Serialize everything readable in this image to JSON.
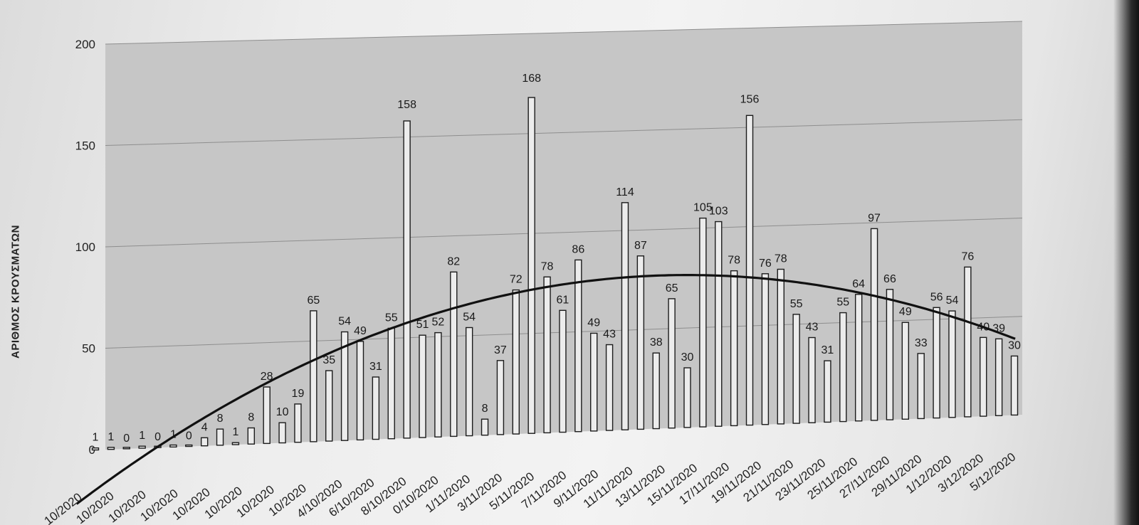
{
  "chart_data": {
    "type": "bar",
    "ylabel": "ΑΡΙΘΜΟΣ ΚΡΟΥΣΜΑΤΩΝ",
    "ylim": [
      0,
      200
    ],
    "yticks": [
      "0",
      "50",
      "100",
      "150",
      "200"
    ],
    "grid": true,
    "trendline": "polynomial",
    "values": [
      1,
      1,
      0,
      1,
      0,
      1,
      0,
      4,
      8,
      1,
      8,
      28,
      10,
      19,
      65,
      35,
      54,
      49,
      31,
      55,
      158,
      51,
      52,
      82,
      54,
      8,
      37,
      72,
      168,
      78,
      61,
      86,
      49,
      43,
      114,
      87,
      38,
      65,
      30,
      105,
      103,
      78,
      156,
      76,
      78,
      55,
      43,
      31,
      55,
      64,
      97,
      66,
      49,
      33,
      56,
      54,
      76,
      40,
      39,
      30
    ],
    "value_labels": [
      "1",
      "1",
      "0",
      "1",
      "0",
      "1",
      "0",
      "4",
      "8",
      "1",
      "8",
      "28",
      "10",
      "19",
      "65",
      "35",
      "54",
      "49",
      "31",
      "55",
      "158",
      "51",
      "52",
      "82",
      "54",
      "8",
      "37",
      "72",
      "168",
      "78",
      "61",
      "86",
      "49",
      "43",
      "114",
      "87",
      "38",
      "65",
      "30",
      "105",
      "103",
      "78",
      "156",
      "76",
      "78",
      "55",
      "43",
      "31",
      "55",
      "64",
      "97",
      "66",
      "49",
      "33",
      "56",
      "54",
      "76",
      "40",
      "39",
      "30"
    ],
    "xtick_labels": [
      "10/2020",
      "10/2020",
      "10/2020",
      "10/2020",
      "10/2020",
      "10/2020",
      "10/2020",
      "10/2020",
      "4/10/2020",
      "6/10/2020",
      "8/10/2020",
      "0/10/2020",
      "1/11/2020",
      "3/11/2020",
      "5/11/2020",
      "7/11/2020",
      "9/11/2020",
      "11/11/2020",
      "13/11/2020",
      "15/11/2020",
      "17/11/2020",
      "19/11/2020",
      "21/11/2020",
      "23/11/2020",
      "25/11/2020",
      "27/11/2020",
      "29/11/2020",
      "1/12/2020",
      "3/12/2020",
      "5/12/2020"
    ]
  }
}
